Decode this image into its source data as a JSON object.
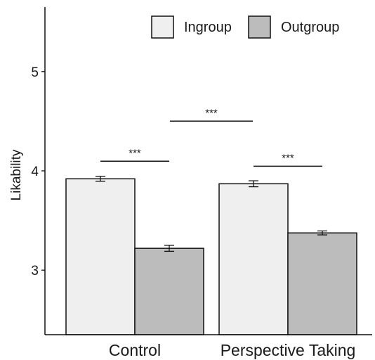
{
  "chart_data": {
    "type": "bar",
    "title": "",
    "xlabel": "",
    "ylabel": "Likability",
    "ylim": [
      2.35,
      5.65
    ],
    "yticks": [
      3,
      4,
      5
    ],
    "categories": [
      "Control",
      "Perspective Taking"
    ],
    "series": [
      {
        "name": "Ingroup",
        "color": "#efefef",
        "values": [
          3.92,
          3.87
        ],
        "errors": [
          0.025,
          0.03
        ]
      },
      {
        "name": "Outgroup",
        "color": "#bcbcbc",
        "values": [
          3.22,
          3.375
        ],
        "errors": [
          0.03,
          0.02
        ]
      }
    ],
    "legend_position": "top-right",
    "grid": false,
    "annotations": [
      {
        "label": "***",
        "type": "within-category",
        "category": 0
      },
      {
        "label": "***",
        "type": "within-category",
        "category": 1
      },
      {
        "label": "***",
        "type": "between-categories"
      }
    ]
  }
}
